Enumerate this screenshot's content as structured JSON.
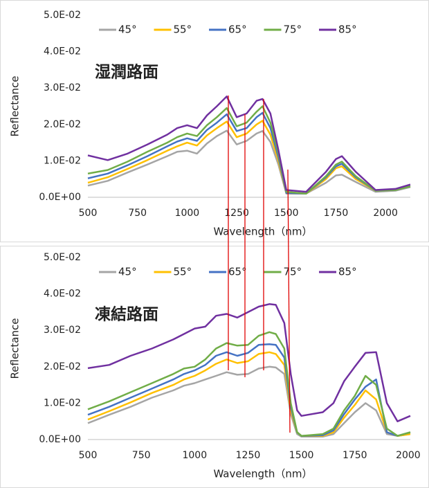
{
  "chart_data": [
    {
      "type": "line",
      "annotation": "湿潤路面",
      "ylabel": "Reflectance",
      "xlabel": "Wavelength（nm）",
      "x": [
        500,
        600,
        700,
        800,
        900,
        950,
        1000,
        1050,
        1100,
        1150,
        1200,
        1250,
        1300,
        1350,
        1380,
        1420,
        1460,
        1500,
        1600,
        1700,
        1750,
        1780,
        1850,
        1950,
        2050,
        2125
      ],
      "xlim": [
        500,
        2125
      ],
      "xticks": [
        500,
        750,
        1000,
        1250,
        1500,
        1750,
        2000
      ],
      "ylim": [
        0,
        0.05
      ],
      "yticks": [
        {
          "value": 0,
          "label": "0.0E+00"
        },
        {
          "value": 0.01,
          "label": "1.0E-02"
        },
        {
          "value": 0.02,
          "label": "2.0E-02"
        },
        {
          "value": 0.03,
          "label": "3.0E-02"
        },
        {
          "value": 0.04,
          "label": "4.0E-02"
        },
        {
          "value": 0.05,
          "label": "5.0E-02"
        }
      ],
      "grid": false,
      "legend": "top",
      "series": [
        {
          "name": "45°",
          "color": "#a5a5a5",
          "values": [
            0.0032,
            0.0045,
            0.0068,
            0.009,
            0.0113,
            0.0125,
            0.0128,
            0.012,
            0.0148,
            0.0168,
            0.0183,
            0.0145,
            0.0155,
            0.0175,
            0.0182,
            0.0152,
            0.009,
            0.001,
            0.001,
            0.004,
            0.006,
            0.0062,
            0.0042,
            0.0015,
            0.0018,
            0.0028
          ]
        },
        {
          "name": "55°",
          "color": "#ffc000",
          "values": [
            0.004,
            0.0055,
            0.0078,
            0.0102,
            0.0128,
            0.014,
            0.015,
            0.0142,
            0.017,
            0.019,
            0.0208,
            0.0165,
            0.0175,
            0.02,
            0.021,
            0.0172,
            0.01,
            0.0012,
            0.001,
            0.005,
            0.008,
            0.0085,
            0.005,
            0.0018,
            0.002,
            0.003
          ]
        },
        {
          "name": "65°",
          "color": "#4472c4",
          "values": [
            0.0052,
            0.0065,
            0.0088,
            0.0113,
            0.014,
            0.0153,
            0.0162,
            0.0155,
            0.0185,
            0.0205,
            0.0228,
            0.0182,
            0.019,
            0.022,
            0.0232,
            0.019,
            0.011,
            0.0012,
            0.001,
            0.0055,
            0.0085,
            0.0092,
            0.0055,
            0.0018,
            0.002,
            0.003
          ]
        },
        {
          "name": "75°",
          "color": "#70ad47",
          "values": [
            0.0065,
            0.0075,
            0.0098,
            0.0125,
            0.015,
            0.0165,
            0.0175,
            0.0168,
            0.0198,
            0.022,
            0.0245,
            0.0195,
            0.0205,
            0.0235,
            0.025,
            0.0205,
            0.012,
            0.0015,
            0.001,
            0.0058,
            0.009,
            0.0098,
            0.0058,
            0.0018,
            0.002,
            0.003
          ]
        },
        {
          "name": "85°",
          "color": "#7030a0",
          "values": [
            0.0115,
            0.0102,
            0.012,
            0.0145,
            0.0172,
            0.019,
            0.0198,
            0.019,
            0.0225,
            0.025,
            0.0277,
            0.022,
            0.023,
            0.0265,
            0.027,
            0.023,
            0.013,
            0.002,
            0.0015,
            0.007,
            0.0105,
            0.0113,
            0.007,
            0.002,
            0.0023,
            0.0035
          ]
        }
      ]
    },
    {
      "type": "line",
      "annotation": "凍結路面",
      "ylabel": "Reflectance",
      "xlabel": "Wavelength（nm）",
      "x": [
        500,
        600,
        700,
        800,
        900,
        950,
        1000,
        1050,
        1100,
        1150,
        1200,
        1250,
        1300,
        1350,
        1380,
        1420,
        1450,
        1480,
        1500,
        1600,
        1650,
        1700,
        1750,
        1800,
        1850,
        1900,
        1950,
        2010
      ],
      "xlim": [
        500,
        2010
      ],
      "xticks": [
        500,
        750,
        1000,
        1250,
        1500,
        1750,
        2000
      ],
      "ylim": [
        0,
        0.05
      ],
      "yticks": [
        {
          "value": 0,
          "label": "0.0E+00"
        },
        {
          "value": 0.01,
          "label": "1.0E-02"
        },
        {
          "value": 0.02,
          "label": "2.0E-02"
        },
        {
          "value": 0.03,
          "label": "3.0E-02"
        },
        {
          "value": 0.04,
          "label": "4.0E-02"
        },
        {
          "value": 0.05,
          "label": "5.0E-02"
        }
      ],
      "grid": false,
      "legend": "top",
      "series": [
        {
          "name": "45°",
          "color": "#a5a5a5",
          "values": [
            0.0045,
            0.0068,
            0.009,
            0.0115,
            0.0135,
            0.0148,
            0.0155,
            0.0165,
            0.0175,
            0.0185,
            0.0178,
            0.018,
            0.0195,
            0.02,
            0.0198,
            0.018,
            0.007,
            0.0015,
            0.0008,
            0.0008,
            0.0015,
            0.0045,
            0.0075,
            0.01,
            0.008,
            0.0015,
            0.001,
            0.0015
          ]
        },
        {
          "name": "55°",
          "color": "#ffc000",
          "values": [
            0.0055,
            0.0078,
            0.0102,
            0.0128,
            0.015,
            0.0165,
            0.0175,
            0.019,
            0.0208,
            0.022,
            0.021,
            0.0215,
            0.0235,
            0.024,
            0.0235,
            0.0205,
            0.008,
            0.002,
            0.001,
            0.001,
            0.002,
            0.006,
            0.0095,
            0.0135,
            0.011,
            0.002,
            0.001,
            0.0015
          ]
        },
        {
          "name": "65°",
          "color": "#4472c4",
          "values": [
            0.0068,
            0.009,
            0.0115,
            0.014,
            0.0165,
            0.018,
            0.019,
            0.0205,
            0.023,
            0.024,
            0.023,
            0.0238,
            0.026,
            0.0262,
            0.026,
            0.0225,
            0.009,
            0.002,
            0.001,
            0.0012,
            0.0025,
            0.007,
            0.011,
            0.0145,
            0.0165,
            0.002,
            0.001,
            0.002
          ]
        },
        {
          "name": "75°",
          "color": "#70ad47",
          "values": [
            0.0083,
            0.0105,
            0.013,
            0.0155,
            0.018,
            0.0195,
            0.02,
            0.022,
            0.025,
            0.0265,
            0.0258,
            0.026,
            0.0285,
            0.0295,
            0.029,
            0.025,
            0.01,
            0.002,
            0.001,
            0.0015,
            0.003,
            0.008,
            0.012,
            0.0175,
            0.015,
            0.003,
            0.001,
            0.002
          ]
        },
        {
          "name": "85°",
          "color": "#7030a0",
          "values": [
            0.0196,
            0.0205,
            0.023,
            0.025,
            0.0275,
            0.029,
            0.0305,
            0.031,
            0.034,
            0.0345,
            0.0335,
            0.035,
            0.0365,
            0.0372,
            0.037,
            0.032,
            0.018,
            0.008,
            0.0065,
            0.0075,
            0.01,
            0.016,
            0.02,
            0.0238,
            0.024,
            0.01,
            0.005,
            0.0065
          ]
        }
      ]
    }
  ]
}
